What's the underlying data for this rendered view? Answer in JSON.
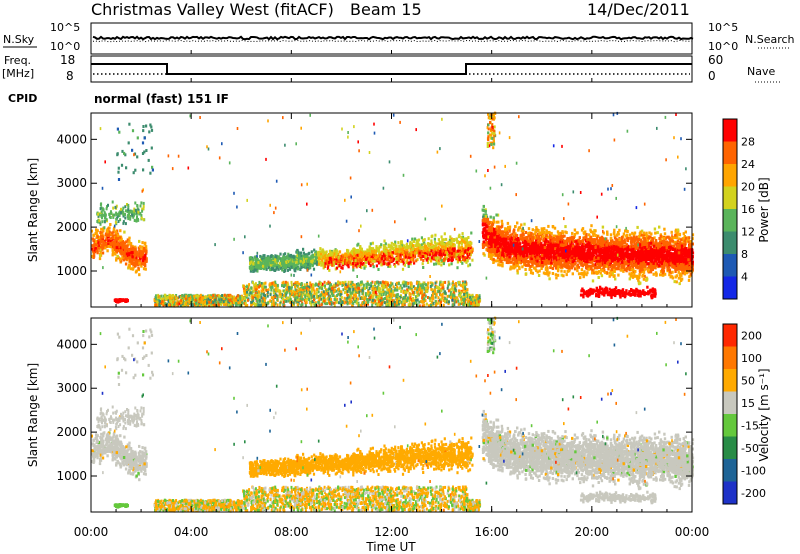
{
  "header": {
    "station": "Christmas Valley West (fitACF)",
    "beam": "Beam 15",
    "date": "14/Dec/2011"
  },
  "noise_panel": {
    "left_label": "N.Sky",
    "right_label": "N.Search",
    "left_ticks": [
      "10^5",
      "10^0"
    ],
    "right_ticks": [
      "10^5",
      "10^0"
    ]
  },
  "freq_panel": {
    "left_label_1": "Freq.",
    "left_label_2": "[MHz]",
    "right_label": "Nave",
    "left_ticks": [
      "18",
      "8"
    ],
    "right_ticks": [
      "60",
      "0"
    ]
  },
  "cpid": {
    "label": "CPID",
    "value": "normal (fast) 151 IF"
  },
  "colors": {
    "power": [
      "#1428e6",
      "#1e5ab4",
      "#3c8c6e",
      "#5ab45a",
      "#d2d21e",
      "#ffa500",
      "#ff6400",
      "#ff0000"
    ],
    "velocity": [
      "#1e32c8",
      "#1e6496",
      "#288c46",
      "#64c83c",
      "#c8c8be",
      "#ffaa00",
      "#ff7800",
      "#ff2800"
    ]
  },
  "chart_data": [
    {
      "type": "heatmap",
      "name": "power",
      "ylabel": "Slant Range [km]",
      "ylim": [
        180,
        4600
      ],
      "y_ticks": [
        "1000",
        "2000",
        "3000",
        "4000"
      ],
      "x_ticks": [
        "00:00",
        "04:00",
        "08:00",
        "12:00",
        "16:00",
        "20:00",
        "00:00"
      ],
      "xlim_hours": [
        0,
        24
      ],
      "colorbar_label": "Power [dB]",
      "colorbar_ticks": [
        "4",
        "8",
        "12",
        "16",
        "20",
        "24",
        "28"
      ]
    },
    {
      "type": "heatmap",
      "name": "velocity",
      "ylabel": "Slant Range [km]",
      "ylim": [
        180,
        4600
      ],
      "y_ticks": [
        "1000",
        "2000",
        "3000",
        "4000"
      ],
      "x_ticks": [
        "00:00",
        "04:00",
        "08:00",
        "12:00",
        "16:00",
        "20:00",
        "00:00"
      ],
      "xlim_hours": [
        0,
        24
      ],
      "xlabel": "Time UT",
      "colorbar_label": "Velocity [m s⁻¹]",
      "colorbar_ticks": [
        "200",
        "100",
        "50",
        "15",
        "-15",
        "-50",
        "-100",
        "-200"
      ]
    }
  ]
}
